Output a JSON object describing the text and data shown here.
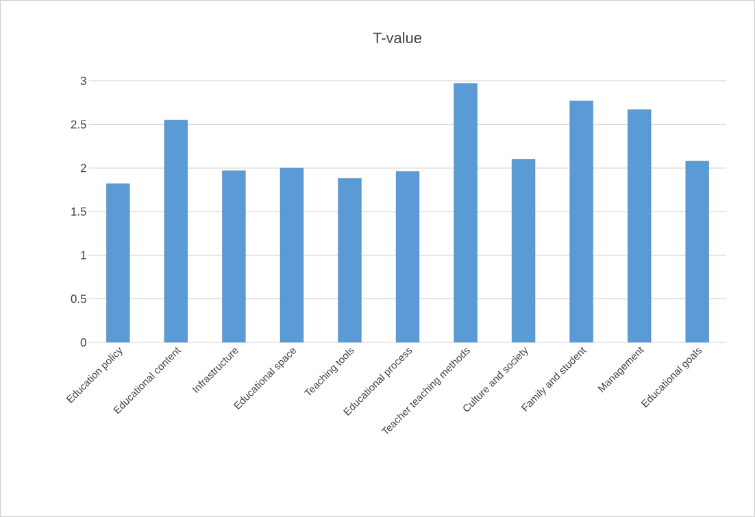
{
  "chart_data": {
    "type": "bar",
    "title": "T-value",
    "categories": [
      "Education policy",
      "Educational content",
      "Infrastructure",
      "Educational space",
      "Teaching tools",
      "Educational process",
      "Teacher teaching methods",
      "Culture and society",
      "Family and student",
      "Management",
      "Educational goals"
    ],
    "values": [
      1.82,
      2.55,
      1.97,
      2.0,
      1.88,
      1.96,
      2.97,
      2.1,
      2.77,
      2.67,
      2.08
    ],
    "color": "#5b9bd5",
    "ylim": [
      0,
      3
    ],
    "yticks": [
      0,
      0.5,
      1,
      1.5,
      2,
      2.5,
      3
    ],
    "grid": "y"
  }
}
